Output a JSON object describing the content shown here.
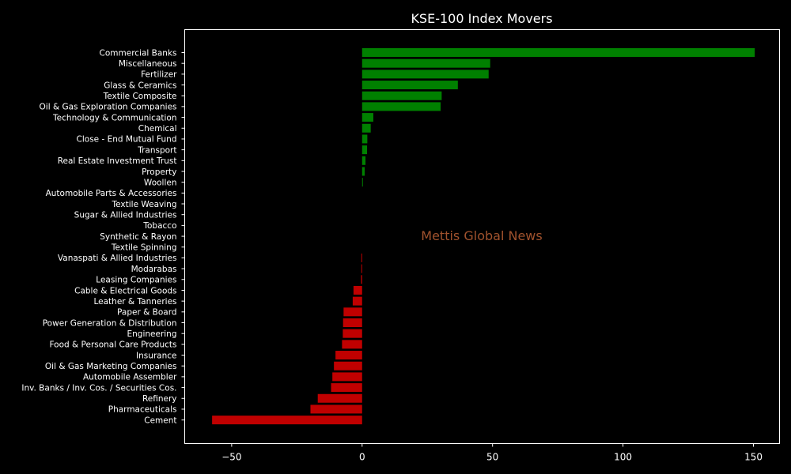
{
  "chart_data": {
    "type": "bar",
    "orientation": "horizontal",
    "title": "KSE-100 Index Movers",
    "watermark": "Mettis Global News",
    "xlabel": "",
    "ylabel": "",
    "xlim": [
      -68,
      160
    ],
    "xticks": [
      -50,
      0,
      50,
      100,
      150
    ],
    "xtick_labels": [
      "−50",
      "0",
      "50",
      "100",
      "150"
    ],
    "grid": false,
    "colors": {
      "positive": "#008000",
      "negative": "#c00000",
      "background": "#000000",
      "text": "#ffffff",
      "watermark": "#a0522d"
    },
    "categories": [
      "Commercial Banks",
      "Miscellaneous",
      "Fertilizer",
      "Glass & Ceramics",
      "Textile Composite",
      "Oil & Gas Exploration Companies",
      "Technology & Communication",
      "Chemical",
      "Close - End Mutual Fund",
      "Transport",
      "Real Estate Investment Trust",
      "Property",
      "Woollen",
      "Automobile Parts & Accessories",
      "Textile Weaving",
      "Sugar & Allied Industries",
      "Tobacco",
      "Synthetic & Rayon",
      "Textile Spinning",
      "Vanaspati & Allied Industries",
      "Modarabas",
      "Leasing Companies",
      "Cable & Electrical Goods",
      "Leather & Tanneries",
      "Paper & Board",
      "Power Generation & Distribution",
      "Engineering",
      "Food & Personal Care Products",
      "Insurance",
      "Oil & Gas Marketing Companies",
      "Automobile Assembler",
      "Inv. Banks / Inv. Cos. / Securities Cos.",
      "Refinery",
      "Pharmaceuticals",
      "Cement"
    ],
    "values": [
      150.5,
      49.1,
      48.5,
      36.7,
      30.5,
      30.1,
      4.3,
      3.3,
      2.0,
      1.9,
      1.3,
      1.0,
      0.3,
      0.0,
      0.0,
      0.0,
      0.0,
      0.0,
      0.0,
      -0.3,
      -0.3,
      -0.4,
      -3.3,
      -3.6,
      -7.1,
      -7.3,
      -7.4,
      -7.7,
      -10.2,
      -10.8,
      -11.4,
      -11.9,
      -17.0,
      -19.8,
      -57.5
    ]
  }
}
